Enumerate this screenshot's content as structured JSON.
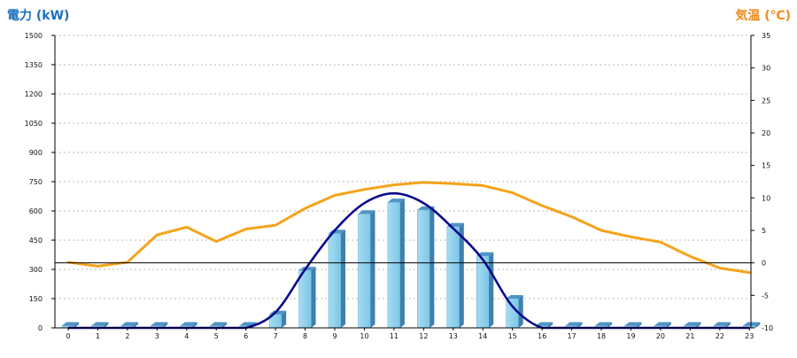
{
  "chart_data": {
    "type": "bar",
    "title": "",
    "left_axis_title": "電力 (kW)",
    "right_axis_title": "気温 (℃)",
    "left_axis_color": "#1a6fbf",
    "right_axis_color": "#f08a1c",
    "categories": [
      "0",
      "1",
      "2",
      "3",
      "4",
      "5",
      "6",
      "7",
      "8",
      "9",
      "10",
      "11",
      "12",
      "13",
      "14",
      "15",
      "16",
      "17",
      "18",
      "19",
      "20",
      "21",
      "22",
      "23"
    ],
    "left_ticks": [
      "1500",
      "1350",
      "1200",
      "1050",
      "900",
      "750",
      "600",
      "450",
      "300",
      "150",
      "0"
    ],
    "right_ticks": [
      "35",
      "30",
      "25",
      "20",
      "15",
      "10",
      "5",
      "0",
      "-5",
      "-10"
    ],
    "ylim_left": [
      0,
      1500
    ],
    "ylim_right": [
      -10,
      35
    ],
    "grid": true,
    "series": [
      {
        "kind": "bar",
        "axis": "left",
        "color": "#87ceeb",
        "values": [
          0,
          0,
          0,
          0,
          0,
          0,
          0,
          70,
          295,
          485,
          585,
          645,
          605,
          520,
          370,
          150,
          0,
          0,
          0,
          0,
          0,
          0,
          0,
          0
        ]
      },
      {
        "kind": "smooth-line",
        "axis": "left",
        "color": "#0a0a8c",
        "values": [
          0,
          0,
          0,
          0,
          0,
          0,
          0,
          80,
          300,
          500,
          640,
          690,
          640,
          510,
          350,
          110,
          0,
          0,
          0,
          0,
          0,
          0,
          0,
          0
        ]
      },
      {
        "kind": "line",
        "axis": "right",
        "color": "#f5a31a",
        "values": [
          0.1,
          -0.5,
          0.1,
          4.3,
          5.5,
          3.3,
          5.2,
          5.8,
          8.4,
          10.4,
          11.3,
          12.0,
          12.4,
          12.2,
          11.9,
          10.8,
          8.8,
          7.1,
          5.0,
          4.0,
          3.2,
          1.0,
          -0.8,
          -1.5
        ]
      }
    ]
  }
}
